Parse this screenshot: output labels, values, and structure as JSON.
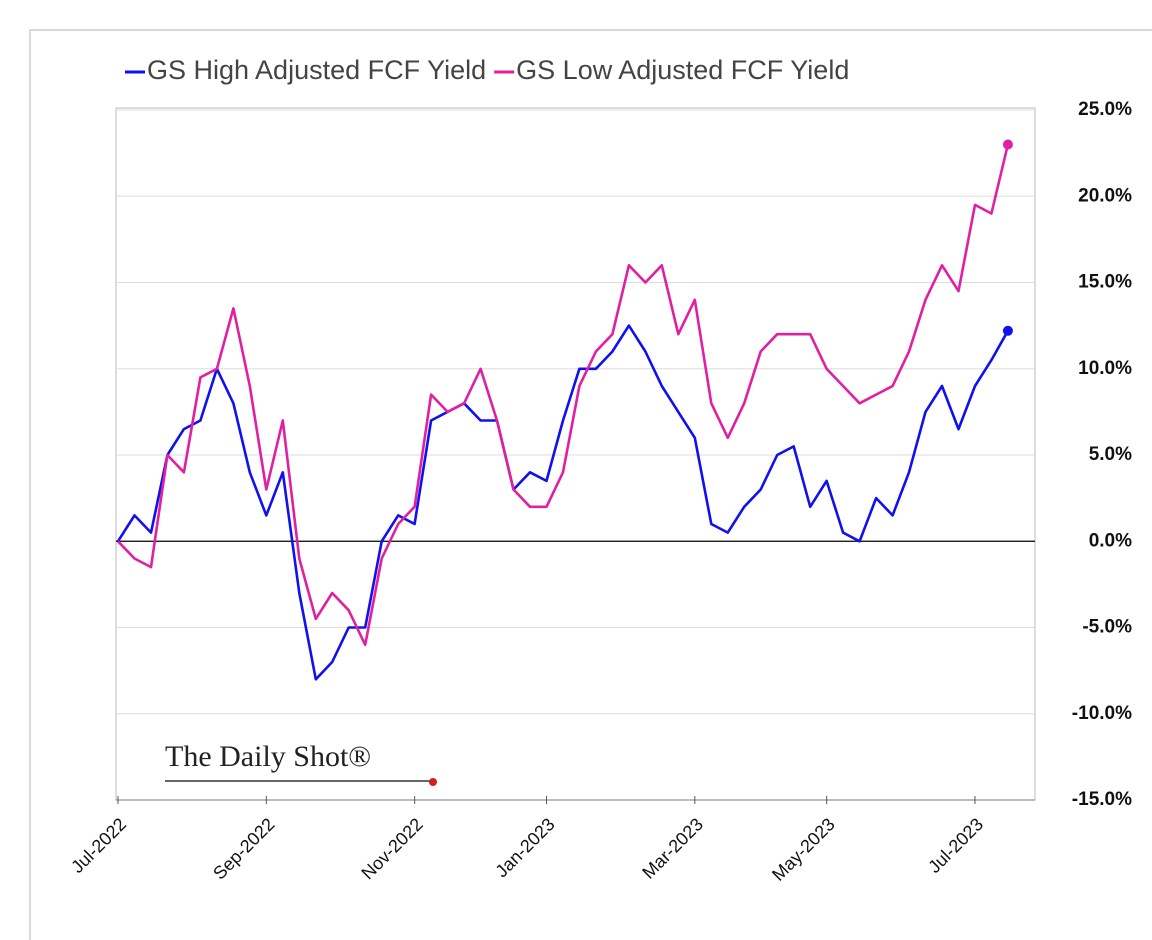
{
  "chart_data": {
    "type": "line",
    "categories": [
      "Jul-2022",
      null,
      null,
      null,
      null,
      null,
      null,
      null,
      null,
      "Sep-2022",
      null,
      null,
      null,
      null,
      null,
      null,
      null,
      null,
      "Nov-2022",
      null,
      null,
      null,
      null,
      null,
      null,
      null,
      "Jan-2023",
      null,
      null,
      null,
      null,
      null,
      null,
      null,
      null,
      "Mar-2023",
      null,
      null,
      null,
      null,
      null,
      null,
      null,
      "May-2023",
      null,
      null,
      null,
      null,
      null,
      null,
      null,
      null,
      "Jul-2023",
      null,
      null
    ],
    "series": [
      {
        "name": "GS High Adjusted FCF Yield",
        "color": "#1010f0",
        "values": [
          0,
          1.5,
          0.5,
          5,
          6.5,
          7,
          10,
          8,
          4,
          1.5,
          4,
          -3,
          -8,
          -7,
          -5,
          -5,
          0,
          1.5,
          1,
          7,
          7.5,
          8,
          7,
          7,
          3,
          4,
          3.5,
          7,
          10,
          10,
          11,
          12.5,
          11,
          9,
          7.5,
          6,
          1,
          0.5,
          2,
          3,
          5,
          5.5,
          2,
          3.5,
          0.5,
          0,
          2.5,
          1.5,
          4,
          7.5,
          9,
          6.5,
          9,
          10.5,
          12.2
        ]
      },
      {
        "name": "GS Low Adjusted FCF Yield",
        "color": "#e020a0",
        "values": [
          0,
          -1,
          -1.5,
          5,
          4,
          9.5,
          10,
          13.5,
          9,
          3,
          7,
          -1,
          -4.5,
          -3,
          -4,
          -6,
          -1,
          1,
          2,
          8.5,
          7.5,
          8,
          10,
          7,
          3,
          2,
          2,
          4,
          9,
          11,
          12,
          16,
          15,
          16,
          12,
          14,
          8,
          6,
          8,
          11,
          12,
          12,
          12,
          10,
          9,
          8,
          8.5,
          9,
          11,
          14,
          16,
          14.5,
          19.5,
          19,
          23
        ]
      }
    ],
    "ylim": [
      -15,
      25
    ],
    "yticks": [
      {
        "value": -15,
        "label": "-15.0%"
      },
      {
        "value": -10,
        "label": "-10.0%"
      },
      {
        "value": -5,
        "label": "-5.0%"
      },
      {
        "value": 0,
        "label": "0.0%"
      },
      {
        "value": 5,
        "label": "5.0%"
      },
      {
        "value": 10,
        "label": "10.0%"
      },
      {
        "value": 15,
        "label": "15.0%"
      },
      {
        "value": 20,
        "label": "20.0%"
      },
      {
        "value": 25,
        "label": "25.0%"
      }
    ],
    "grid": true,
    "watermark": "The Daily Shot®"
  }
}
